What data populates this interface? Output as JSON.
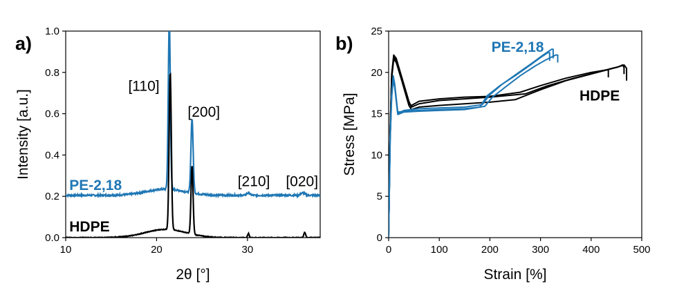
{
  "colors": {
    "blue": "#1f77b4",
    "black": "#000000"
  },
  "chart_data": [
    {
      "type": "line",
      "panel_label": "a)",
      "xlabel": "2θ [°]",
      "ylabel": "Intensity [a.u.]",
      "xlim": [
        10,
        38
      ],
      "ylim": [
        0,
        1.0
      ],
      "xticks": [
        10,
        20,
        30
      ],
      "xtick_labels": [
        "10",
        "20",
        "30"
      ],
      "yticks": [
        0,
        0.2,
        0.4,
        0.6,
        0.8,
        1.0
      ],
      "ytick_labels": [
        "0.0",
        "0.2",
        "0.4",
        "0.6",
        "0.8",
        "1.0"
      ],
      "grid": false,
      "series": [
        {
          "name": "PE-2,18",
          "color": "#1f77b4",
          "baseline": 0.205,
          "peaks": [
            {
              "x": 21.4,
              "height": 0.82,
              "width": 0.16
            },
            {
              "x": 23.9,
              "height": 0.36,
              "width": 0.17
            },
            {
              "x": 30.1,
              "height": 0.012,
              "width": 0.25
            },
            {
              "x": 36.1,
              "height": 0.012,
              "width": 0.3
            }
          ],
          "hump": {
            "center": 21.0,
            "height": 0.03,
            "width": 3.0
          }
        },
        {
          "name": "HDPE",
          "color": "#000000",
          "baseline": 0.0,
          "peaks": [
            {
              "x": 21.5,
              "height": 0.76,
              "width": 0.17
            },
            {
              "x": 23.9,
              "height": 0.33,
              "width": 0.16
            },
            {
              "x": 30.1,
              "height": 0.02,
              "width": 0.12
            },
            {
              "x": 36.3,
              "height": 0.025,
              "width": 0.15
            }
          ],
          "hump": {
            "center": 21.0,
            "height": 0.04,
            "width": 3.2
          }
        }
      ],
      "annotations": [
        {
          "text": "[110]",
          "x": 18.6,
          "y": 0.71
        },
        {
          "text": "[200]",
          "x": 25.2,
          "y": 0.585
        },
        {
          "text": "[210]",
          "x": 30.7,
          "y": 0.25
        },
        {
          "text": "[020]",
          "x": 36.0,
          "y": 0.25
        }
      ],
      "series_labels": [
        {
          "text": "PE-2,18",
          "x": 10.4,
          "y": 0.23,
          "color": "#1f77b4"
        },
        {
          "text": "HDPE",
          "x": 10.4,
          "y": 0.03,
          "color": "#000000"
        }
      ]
    },
    {
      "type": "line",
      "panel_label": "b)",
      "xlabel": "Strain [%]",
      "ylabel": "Stress [MPa]",
      "xlim": [
        0,
        500
      ],
      "ylim": [
        0,
        25
      ],
      "xticks": [
        0,
        100,
        200,
        300,
        400,
        500
      ],
      "xtick_labels": [
        "0",
        "100",
        "200",
        "300",
        "400",
        "500"
      ],
      "yticks": [
        0,
        5,
        10,
        15,
        20,
        25
      ],
      "ytick_labels": [
        "0",
        "5",
        "10",
        "15",
        "20",
        "25"
      ],
      "grid": false,
      "series": [
        {
          "name": "PE-2,18",
          "color": "#1f77b4",
          "curves": [
            {
              "x": [
                0,
                3,
                6,
                9,
                12,
                18,
                30,
                60,
                100,
                150,
                180,
                195,
                220,
                250,
                280,
                300,
                315,
                318,
                318
              ],
              "y": [
                0,
                12,
                17.5,
                19.6,
                18.6,
                15.2,
                15.3,
                15.4,
                15.5,
                15.6,
                15.8,
                17.2,
                18.4,
                19.6,
                20.9,
                21.8,
                22.4,
                22.4,
                21.4
              ]
            },
            {
              "x": [
                0,
                3,
                6,
                9,
                12,
                18,
                30,
                60,
                100,
                150,
                185,
                200,
                225,
                255,
                285,
                305,
                322,
                325,
                325
              ],
              "y": [
                0,
                12,
                17.3,
                19.3,
                18.4,
                15.0,
                15.4,
                15.6,
                15.7,
                15.8,
                16.1,
                17.3,
                18.6,
                19.9,
                21.2,
                22.1,
                22.8,
                22.8,
                21.7
              ]
            },
            {
              "x": [
                0,
                3,
                6,
                9,
                12,
                18,
                30,
                60,
                100,
                150,
                190,
                205,
                230,
                260,
                290,
                310,
                330,
                334,
                334
              ],
              "y": [
                0,
                12,
                17.0,
                19.0,
                18.2,
                14.9,
                15.2,
                15.3,
                15.4,
                15.5,
                15.9,
                17.0,
                18.2,
                19.6,
                20.8,
                21.5,
                22.1,
                22.1,
                21.2
              ]
            }
          ]
        },
        {
          "name": "HDPE",
          "color": "#000000",
          "curves": [
            {
              "x": [
                0,
                3,
                6,
                10,
                15,
                25,
                40,
                45,
                60,
                100,
                150,
                200,
                260,
                300,
                350,
                400,
                430,
                434,
                434
              ],
              "y": [
                0,
                13,
                19.5,
                21.8,
                21.5,
                19.4,
                16.2,
                16.0,
                16.5,
                16.8,
                17.0,
                17.1,
                17.6,
                18.4,
                19.3,
                20.0,
                20.3,
                20.3,
                19.4
              ]
            },
            {
              "x": [
                0,
                3,
                6,
                10,
                15,
                25,
                40,
                45,
                60,
                100,
                150,
                200,
                270,
                310,
                360,
                410,
                455,
                462,
                465,
                465
              ],
              "y": [
                0,
                13,
                19.8,
                22.1,
                21.7,
                19.6,
                16.5,
                15.8,
                16.2,
                16.6,
                16.8,
                17.0,
                17.4,
                18.3,
                19.2,
                20.0,
                20.7,
                20.9,
                20.6,
                19.8
              ]
            },
            {
              "x": [
                0,
                3,
                6,
                10,
                15,
                25,
                40,
                45,
                60,
                100,
                150,
                200,
                250,
                300,
                350,
                400,
                450,
                465,
                470,
                470
              ],
              "y": [
                0,
                13,
                19.3,
                21.6,
                21.2,
                19.2,
                16.0,
                15.5,
                15.8,
                16.0,
                16.2,
                16.4,
                16.7,
                17.9,
                19.0,
                19.8,
                20.6,
                20.9,
                20.5,
                19.0
              ]
            }
          ]
        }
      ],
      "series_labels": [
        {
          "text": "PE-2,18",
          "x": 203,
          "y": 22.5,
          "color": "#1f77b4"
        },
        {
          "text": "HDPE",
          "x": 377,
          "y": 16.6,
          "color": "#000000"
        }
      ]
    }
  ]
}
